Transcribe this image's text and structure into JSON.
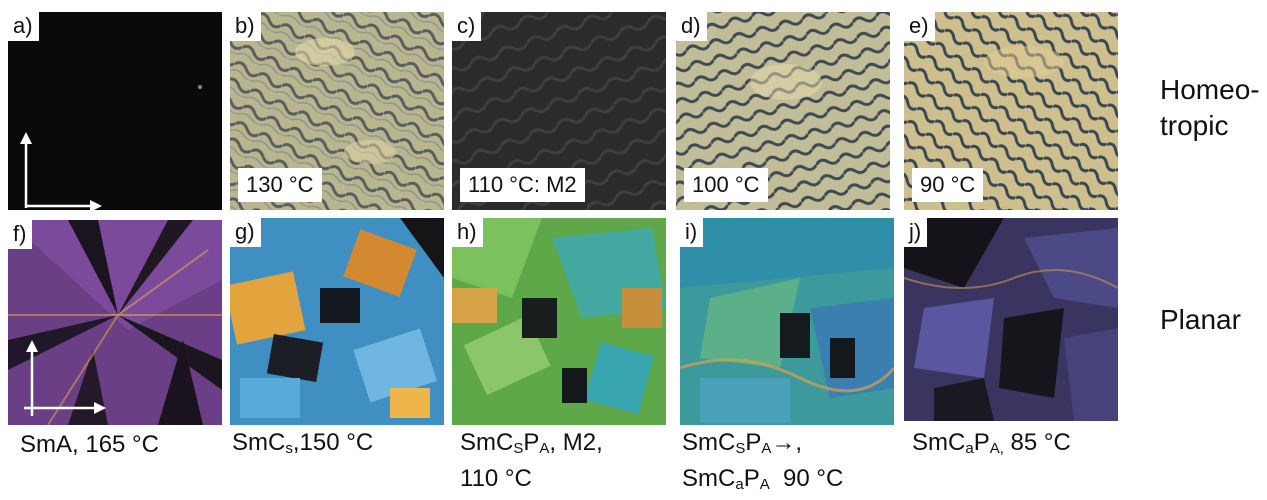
{
  "figure": {
    "row_labels": {
      "top": [
        "Homeo-",
        "tropic"
      ],
      "bottom": "Planar"
    },
    "top_row": [
      {
        "tag": "a)",
        "temp": ""
      },
      {
        "tag": "b)",
        "temp": "130 °C"
      },
      {
        "tag": "c)",
        "temp": "110 °C: M2"
      },
      {
        "tag": "d)",
        "temp": "100 °C"
      },
      {
        "tag": "e)",
        "temp": "90 °C"
      }
    ],
    "bottom_row": [
      {
        "tag": "f)"
      },
      {
        "tag": "g)"
      },
      {
        "tag": "h)"
      },
      {
        "tag": "i)"
      },
      {
        "tag": "j)"
      }
    ],
    "captions": {
      "f": {
        "line1": "SmA, 165 °C"
      },
      "g": {
        "a": "SmC",
        "a_sub": "s",
        "b": ",150 °C"
      },
      "h": {
        "a": "SmC",
        "a_sub": "S",
        "b": "P",
        "b_sub": "A",
        "c": ", M2,",
        "line2": "110 °C"
      },
      "i": {
        "a": "SmC",
        "a_sub": "S",
        "b": "P",
        "b_sub": "A",
        "c": "→,",
        "d": "SmC",
        "d_sub": "a",
        "e": "P",
        "e_sub": "A",
        "f": "  90 °C"
      },
      "j": {
        "a": "SmC",
        "a_sub": "a",
        "b": "P",
        "b_sub": "A,",
        "c": " 85 °C"
      }
    }
  }
}
